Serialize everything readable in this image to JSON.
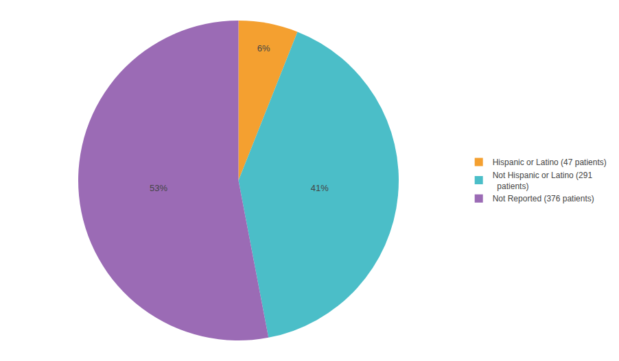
{
  "chart_data": {
    "type": "pie",
    "categories": [
      "Hispanic or Latino (47 patients)",
      "Not Hispanic or Latino (291\n  patients)",
      "Not Reported (376 patients)"
    ],
    "values": [
      6,
      41,
      53
    ],
    "value_labels": [
      "6%",
      "41%",
      "53%"
    ],
    "colors": [
      "#F4A030",
      "#4BBEC8",
      "#9B6BB5"
    ],
    "data_labels": true,
    "legend": "right"
  }
}
